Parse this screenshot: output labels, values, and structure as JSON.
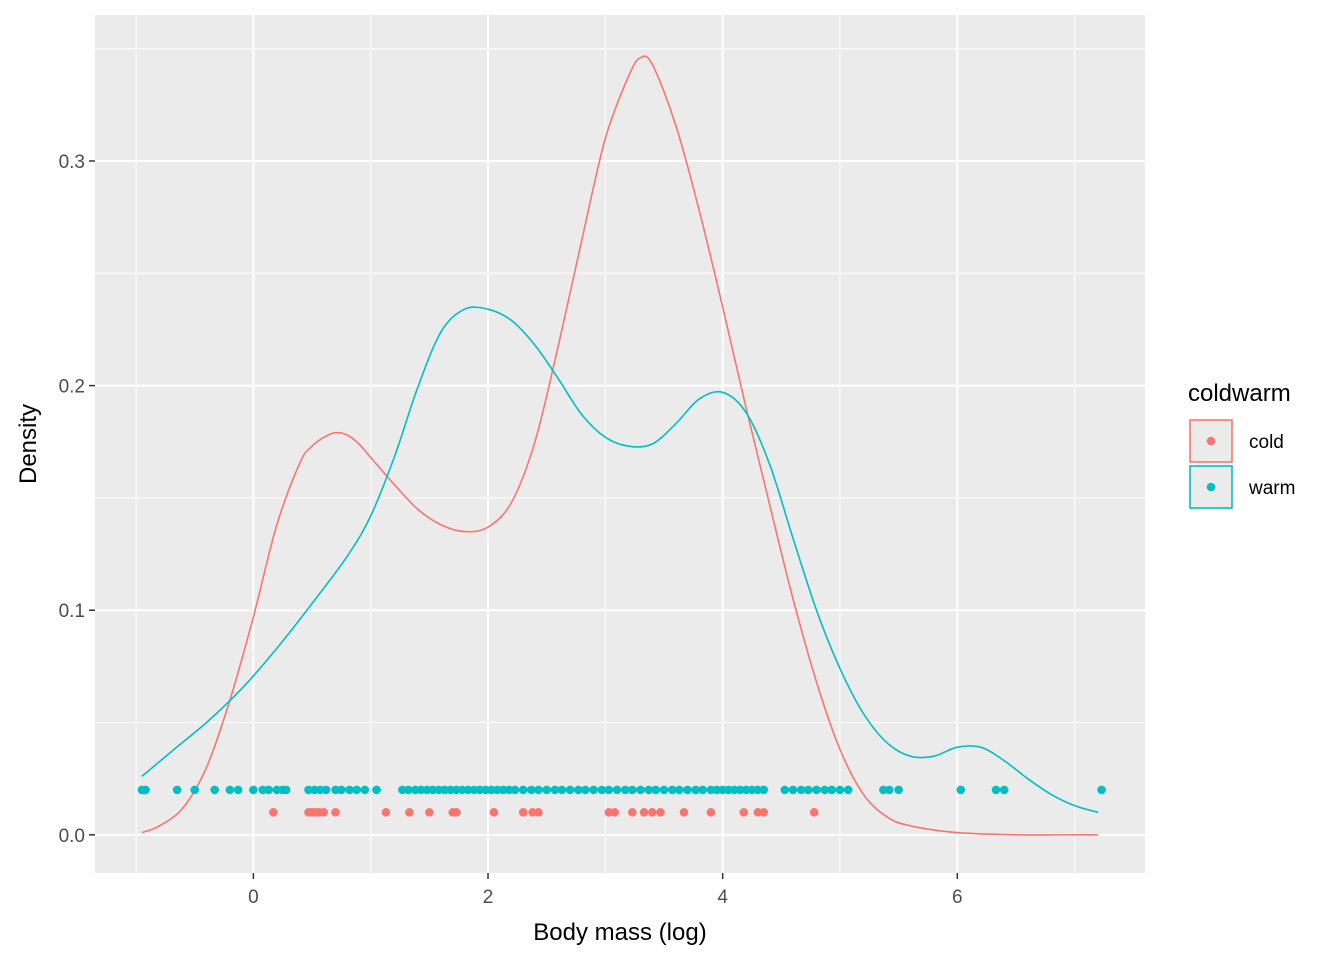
{
  "chart_data": {
    "type": "line",
    "xlabel": "Body mass (log)",
    "ylabel": "Density",
    "xlim": [
      -1.35,
      7.6
    ],
    "ylim": [
      -0.017,
      0.365
    ],
    "grid": true,
    "panel_background": "#ebebeb",
    "x_ticks": [
      0,
      2,
      4,
      6
    ],
    "x_tick_labels": [
      "0",
      "2",
      "4",
      "6"
    ],
    "x_minor_ticks": [
      -1,
      1,
      3,
      5,
      7
    ],
    "y_ticks": [
      0.0,
      0.1,
      0.2,
      0.3
    ],
    "y_tick_labels": [
      "0.0",
      "0.1",
      "0.2",
      "0.3"
    ],
    "y_minor_ticks": [
      0.05,
      0.15,
      0.25,
      0.35
    ],
    "legend": {
      "title": "coldwarm",
      "position": "right",
      "entries": [
        {
          "label": "cold",
          "color": "#F8766D"
        },
        {
          "label": "warm",
          "color": "#00BFC4"
        }
      ]
    },
    "series": [
      {
        "name": "cold",
        "color": "#F8766D",
        "x": [
          -0.95,
          -0.8,
          -0.6,
          -0.4,
          -0.2,
          0.0,
          0.2,
          0.4,
          0.5,
          0.6,
          0.7,
          0.8,
          0.9,
          1.0,
          1.2,
          1.4,
          1.6,
          1.8,
          2.0,
          2.2,
          2.4,
          2.6,
          2.8,
          3.0,
          3.2,
          3.3,
          3.4,
          3.6,
          3.8,
          4.0,
          4.2,
          4.4,
          4.6,
          4.8,
          5.0,
          5.2,
          5.4,
          5.6,
          6.0,
          6.5,
          7.0,
          7.2
        ],
        "y": [
          0.001,
          0.004,
          0.012,
          0.03,
          0.06,
          0.097,
          0.138,
          0.166,
          0.173,
          0.177,
          0.179,
          0.178,
          0.174,
          0.168,
          0.156,
          0.145,
          0.138,
          0.135,
          0.137,
          0.148,
          0.175,
          0.218,
          0.265,
          0.31,
          0.338,
          0.346,
          0.343,
          0.316,
          0.278,
          0.235,
          0.19,
          0.147,
          0.105,
          0.068,
          0.038,
          0.018,
          0.008,
          0.004,
          0.001,
          0.0,
          0.0,
          0.0
        ]
      },
      {
        "name": "warm",
        "color": "#00BFC4",
        "x": [
          -0.95,
          -0.7,
          -0.4,
          -0.1,
          0.2,
          0.5,
          0.8,
          1.0,
          1.2,
          1.4,
          1.6,
          1.8,
          2.0,
          2.2,
          2.4,
          2.6,
          2.8,
          3.0,
          3.2,
          3.4,
          3.6,
          3.8,
          4.0,
          4.2,
          4.4,
          4.6,
          4.8,
          5.0,
          5.2,
          5.4,
          5.6,
          5.8,
          6.0,
          6.2,
          6.4,
          6.6,
          6.8,
          7.0,
          7.2
        ],
        "y": [
          0.026,
          0.037,
          0.05,
          0.065,
          0.083,
          0.103,
          0.124,
          0.142,
          0.168,
          0.199,
          0.224,
          0.234,
          0.234,
          0.229,
          0.218,
          0.203,
          0.187,
          0.177,
          0.173,
          0.174,
          0.183,
          0.194,
          0.197,
          0.188,
          0.165,
          0.132,
          0.1,
          0.074,
          0.054,
          0.041,
          0.035,
          0.035,
          0.039,
          0.039,
          0.033,
          0.025,
          0.018,
          0.013,
          0.01
        ]
      }
    ],
    "rug_points": [
      {
        "name": "cold",
        "color": "#F8766D",
        "y": 0.01,
        "x": [
          0.17,
          0.47,
          0.5,
          0.53,
          0.56,
          0.6,
          0.7,
          1.13,
          1.33,
          1.5,
          1.7,
          1.73,
          2.05,
          2.3,
          2.38,
          2.43,
          3.03,
          3.08,
          3.23,
          3.33,
          3.4,
          3.47,
          3.67,
          3.9,
          4.18,
          4.3,
          4.35,
          4.78
        ]
      },
      {
        "name": "warm",
        "color": "#00BFC4",
        "y": 0.02,
        "x": [
          -0.95,
          -0.92,
          -0.65,
          -0.5,
          -0.33,
          -0.2,
          -0.13,
          0.0,
          0.08,
          0.13,
          0.2,
          0.25,
          0.28,
          0.47,
          0.52,
          0.57,
          0.62,
          0.7,
          0.75,
          0.82,
          0.88,
          0.95,
          1.05,
          1.27,
          1.32,
          1.38,
          1.43,
          1.48,
          1.53,
          1.58,
          1.63,
          1.68,
          1.73,
          1.78,
          1.83,
          1.88,
          1.93,
          1.98,
          2.03,
          2.08,
          2.13,
          2.18,
          2.23,
          2.3,
          2.37,
          2.43,
          2.5,
          2.57,
          2.63,
          2.7,
          2.77,
          2.83,
          2.9,
          2.97,
          3.03,
          3.1,
          3.17,
          3.23,
          3.3,
          3.37,
          3.43,
          3.5,
          3.57,
          3.63,
          3.7,
          3.77,
          3.83,
          3.9,
          3.95,
          4.0,
          4.05,
          4.1,
          4.15,
          4.2,
          4.25,
          4.3,
          4.35,
          4.53,
          4.6,
          4.67,
          4.73,
          4.8,
          4.87,
          4.93,
          5.0,
          5.07,
          5.37,
          5.42,
          5.5,
          6.03,
          6.33,
          6.4,
          7.23
        ]
      }
    ]
  }
}
